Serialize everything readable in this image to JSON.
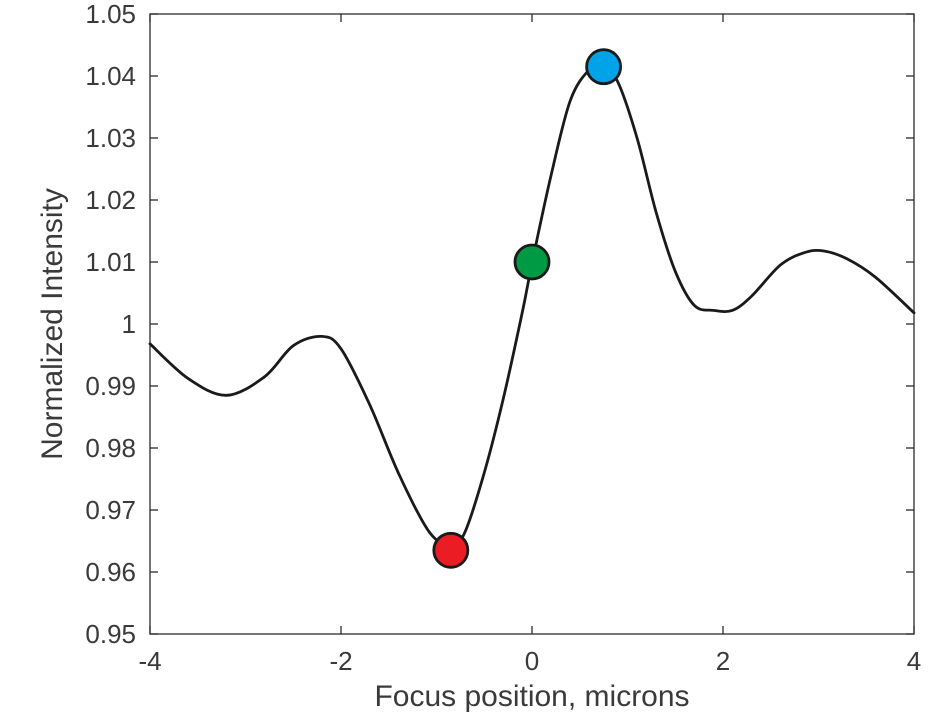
{
  "chart_data": {
    "type": "line",
    "title": "",
    "xlabel": "Focus position, microns",
    "ylabel": "Normalized Intensity",
    "xlim": [
      -4,
      4
    ],
    "ylim": [
      0.95,
      1.05
    ],
    "x_ticks": [
      -4,
      -2,
      0,
      2,
      4
    ],
    "x_tick_labels": [
      "-4",
      "-2",
      "0",
      "2",
      "4"
    ],
    "y_ticks": [
      0.95,
      0.96,
      0.97,
      0.98,
      0.99,
      1.0,
      1.01,
      1.02,
      1.03,
      1.04,
      1.05
    ],
    "y_tick_labels": [
      "0.95",
      "0.96",
      "0.97",
      "0.98",
      "0.99",
      "1",
      "1.01",
      "1.02",
      "1.03",
      "1.04",
      "1.05"
    ],
    "grid": false,
    "legend": "none",
    "series": [
      {
        "color": "#1a1a1a",
        "x": [
          -4.0,
          -3.6,
          -3.2,
          -2.8,
          -2.5,
          -2.2,
          -2.0,
          -1.7,
          -1.4,
          -1.1,
          -0.9,
          -0.85,
          -0.7,
          -0.5,
          -0.3,
          -0.1,
          0.0,
          0.2,
          0.4,
          0.6,
          0.75,
          0.9,
          1.1,
          1.3,
          1.5,
          1.7,
          1.9,
          2.1,
          2.3,
          2.6,
          2.85,
          3.05,
          3.3,
          3.6,
          4.0
        ],
        "y": [
          0.9968,
          0.9912,
          0.9885,
          0.9915,
          0.9965,
          0.998,
          0.996,
          0.987,
          0.976,
          0.967,
          0.964,
          0.9635,
          0.9665,
          0.976,
          0.988,
          1.002,
          1.0098,
          1.024,
          1.036,
          1.041,
          1.0415,
          1.039,
          1.03,
          1.018,
          1.0085,
          1.003,
          1.0022,
          1.0022,
          1.0045,
          1.0095,
          1.0115,
          1.0118,
          1.0105,
          1.0075,
          1.0018
        ]
      }
    ],
    "markers": [
      {
        "x": -0.85,
        "y": 0.9635,
        "color": "#ec1c24"
      },
      {
        "x": 0.0,
        "y": 1.01,
        "color": "#009a44"
      },
      {
        "x": 0.75,
        "y": 1.0415,
        "color": "#00a2e8"
      }
    ]
  }
}
